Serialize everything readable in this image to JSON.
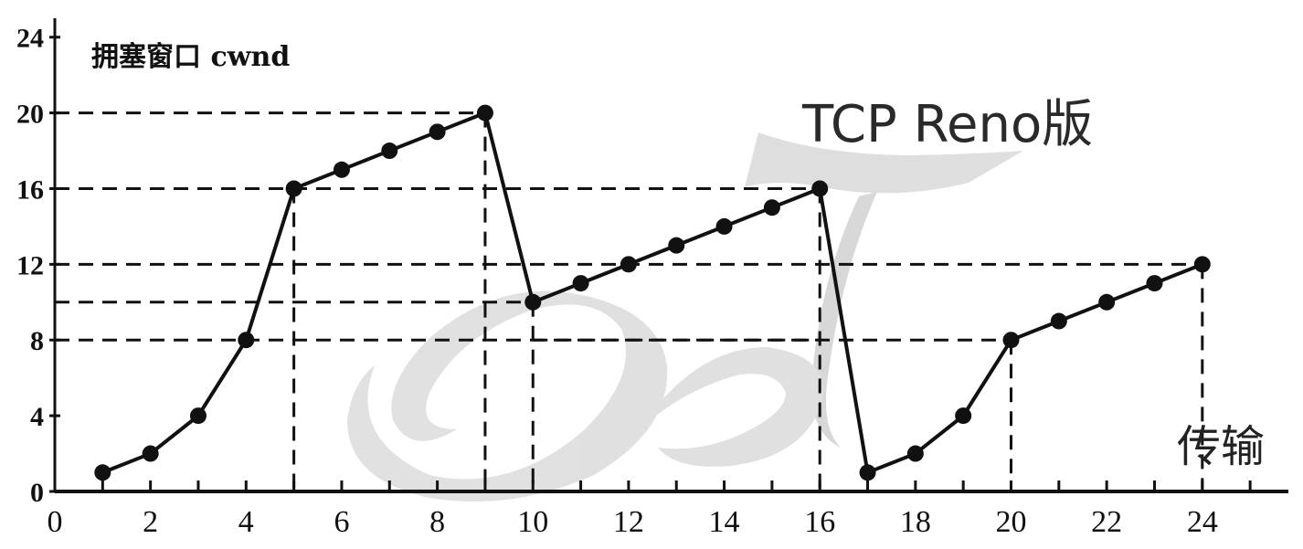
{
  "chart_data": {
    "type": "line",
    "title": "TCP  Reno版",
    "ylabel": "拥塞窗口  cwnd",
    "xlabel": "传输",
    "xlim": [
      0,
      25.8
    ],
    "ylim": [
      0,
      25
    ],
    "xticks": [
      0,
      2,
      4,
      6,
      8,
      10,
      12,
      14,
      16,
      18,
      20,
      22,
      24
    ],
    "yticks": [
      0,
      4,
      8,
      12,
      16,
      20,
      24
    ],
    "series": [
      {
        "x": [
          1,
          2,
          3,
          4,
          5,
          6,
          7,
          8,
          9,
          10,
          11,
          12,
          13,
          14,
          15,
          16,
          17,
          18,
          19,
          20,
          21,
          22,
          23,
          24
        ],
        "y": [
          1,
          2,
          4,
          8,
          16,
          17,
          18,
          19,
          20,
          10,
          11,
          12,
          13,
          14,
          15,
          16,
          1,
          2,
          4,
          8,
          9,
          10,
          11,
          12
        ]
      }
    ],
    "reference_lines": [
      {
        "x": 5,
        "y": 16
      },
      {
        "x": 9,
        "y": 20
      },
      {
        "x": 10,
        "y": 10
      },
      {
        "x": 16,
        "y": 16
      },
      {
        "x": 10,
        "x_end": 16,
        "y": 8
      },
      {
        "x": 20,
        "y": 8
      },
      {
        "x": 24,
        "y": 12
      }
    ]
  },
  "colors": {
    "line": "#111111",
    "dash": "#111111",
    "watermark": "#bdbdbd"
  }
}
